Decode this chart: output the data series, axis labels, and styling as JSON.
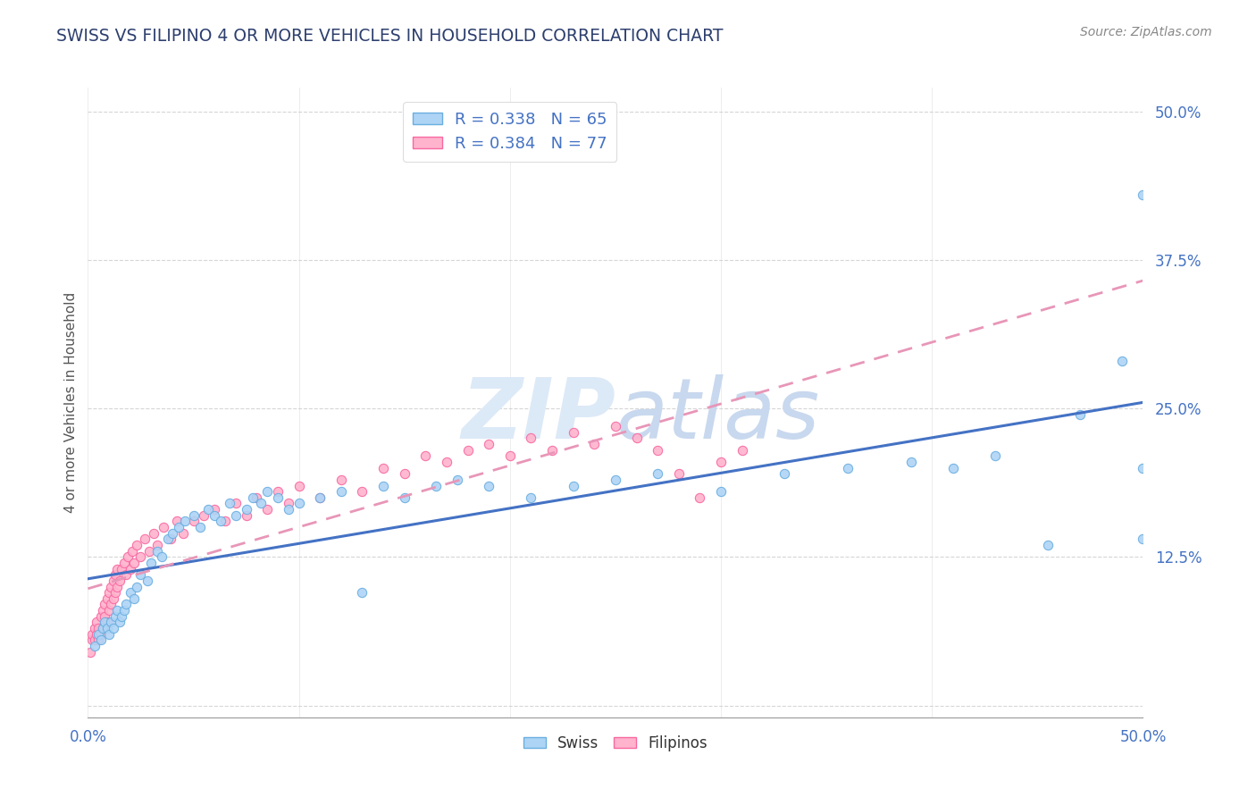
{
  "title": "SWISS VS FILIPINO 4 OR MORE VEHICLES IN HOUSEHOLD CORRELATION CHART",
  "source": "Source: ZipAtlas.com",
  "ylabel": "4 or more Vehicles in Household",
  "xrange": [
    0.0,
    0.5
  ],
  "yrange": [
    -0.01,
    0.52
  ],
  "swiss_R": 0.338,
  "swiss_N": 65,
  "filipino_R": 0.384,
  "filipino_N": 77,
  "swiss_dot_fill": "#aed4f5",
  "swiss_dot_edge": "#6aaee0",
  "filipino_dot_fill": "#ffb3cc",
  "filipino_dot_edge": "#f768a1",
  "trendline_swiss_color": "#4472c4",
  "trendline_filipino_color": "#e896b8",
  "watermark_color": "#dce9f7",
  "axis_color": "#4472c4",
  "title_color": "#2d3f6e",
  "source_color": "#888888",
  "ylabel_color": "#555555",
  "swiss_x": [
    0.003,
    0.005,
    0.006,
    0.007,
    0.008,
    0.009,
    0.01,
    0.011,
    0.012,
    0.013,
    0.014,
    0.015,
    0.016,
    0.017,
    0.018,
    0.02,
    0.022,
    0.023,
    0.025,
    0.028,
    0.03,
    0.033,
    0.035,
    0.038,
    0.04,
    0.043,
    0.046,
    0.05,
    0.053,
    0.057,
    0.06,
    0.063,
    0.067,
    0.07,
    0.075,
    0.078,
    0.082,
    0.085,
    0.09,
    0.095,
    0.1,
    0.11,
    0.12,
    0.13,
    0.14,
    0.15,
    0.165,
    0.175,
    0.19,
    0.21,
    0.23,
    0.25,
    0.27,
    0.3,
    0.33,
    0.36,
    0.39,
    0.41,
    0.43,
    0.455,
    0.47,
    0.49,
    0.5,
    0.5,
    0.5
  ],
  "swiss_y": [
    0.05,
    0.06,
    0.055,
    0.065,
    0.07,
    0.065,
    0.06,
    0.07,
    0.065,
    0.075,
    0.08,
    0.07,
    0.075,
    0.08,
    0.085,
    0.095,
    0.09,
    0.1,
    0.11,
    0.105,
    0.12,
    0.13,
    0.125,
    0.14,
    0.145,
    0.15,
    0.155,
    0.16,
    0.15,
    0.165,
    0.16,
    0.155,
    0.17,
    0.16,
    0.165,
    0.175,
    0.17,
    0.18,
    0.175,
    0.165,
    0.17,
    0.175,
    0.18,
    0.095,
    0.185,
    0.175,
    0.185,
    0.19,
    0.185,
    0.175,
    0.185,
    0.19,
    0.195,
    0.18,
    0.195,
    0.2,
    0.205,
    0.2,
    0.21,
    0.135,
    0.245,
    0.29,
    0.14,
    0.2,
    0.43
  ],
  "filipino_x": [
    0.001,
    0.002,
    0.002,
    0.003,
    0.003,
    0.004,
    0.004,
    0.005,
    0.005,
    0.006,
    0.006,
    0.007,
    0.007,
    0.008,
    0.008,
    0.009,
    0.009,
    0.01,
    0.01,
    0.011,
    0.011,
    0.012,
    0.012,
    0.013,
    0.013,
    0.014,
    0.014,
    0.015,
    0.016,
    0.017,
    0.018,
    0.019,
    0.02,
    0.021,
    0.022,
    0.023,
    0.025,
    0.027,
    0.029,
    0.031,
    0.033,
    0.036,
    0.039,
    0.042,
    0.045,
    0.05,
    0.055,
    0.06,
    0.065,
    0.07,
    0.075,
    0.08,
    0.085,
    0.09,
    0.095,
    0.1,
    0.11,
    0.12,
    0.13,
    0.14,
    0.15,
    0.16,
    0.17,
    0.18,
    0.19,
    0.2,
    0.21,
    0.22,
    0.23,
    0.24,
    0.25,
    0.26,
    0.27,
    0.28,
    0.29,
    0.3,
    0.31
  ],
  "filipino_y": [
    0.045,
    0.055,
    0.06,
    0.055,
    0.065,
    0.06,
    0.07,
    0.055,
    0.065,
    0.06,
    0.075,
    0.065,
    0.08,
    0.075,
    0.085,
    0.07,
    0.09,
    0.08,
    0.095,
    0.085,
    0.1,
    0.09,
    0.105,
    0.095,
    0.11,
    0.1,
    0.115,
    0.105,
    0.115,
    0.12,
    0.11,
    0.125,
    0.115,
    0.13,
    0.12,
    0.135,
    0.125,
    0.14,
    0.13,
    0.145,
    0.135,
    0.15,
    0.14,
    0.155,
    0.145,
    0.155,
    0.16,
    0.165,
    0.155,
    0.17,
    0.16,
    0.175,
    0.165,
    0.18,
    0.17,
    0.185,
    0.175,
    0.19,
    0.18,
    0.2,
    0.195,
    0.21,
    0.205,
    0.215,
    0.22,
    0.21,
    0.225,
    0.215,
    0.23,
    0.22,
    0.235,
    0.225,
    0.215,
    0.195,
    0.175,
    0.205,
    0.215
  ]
}
